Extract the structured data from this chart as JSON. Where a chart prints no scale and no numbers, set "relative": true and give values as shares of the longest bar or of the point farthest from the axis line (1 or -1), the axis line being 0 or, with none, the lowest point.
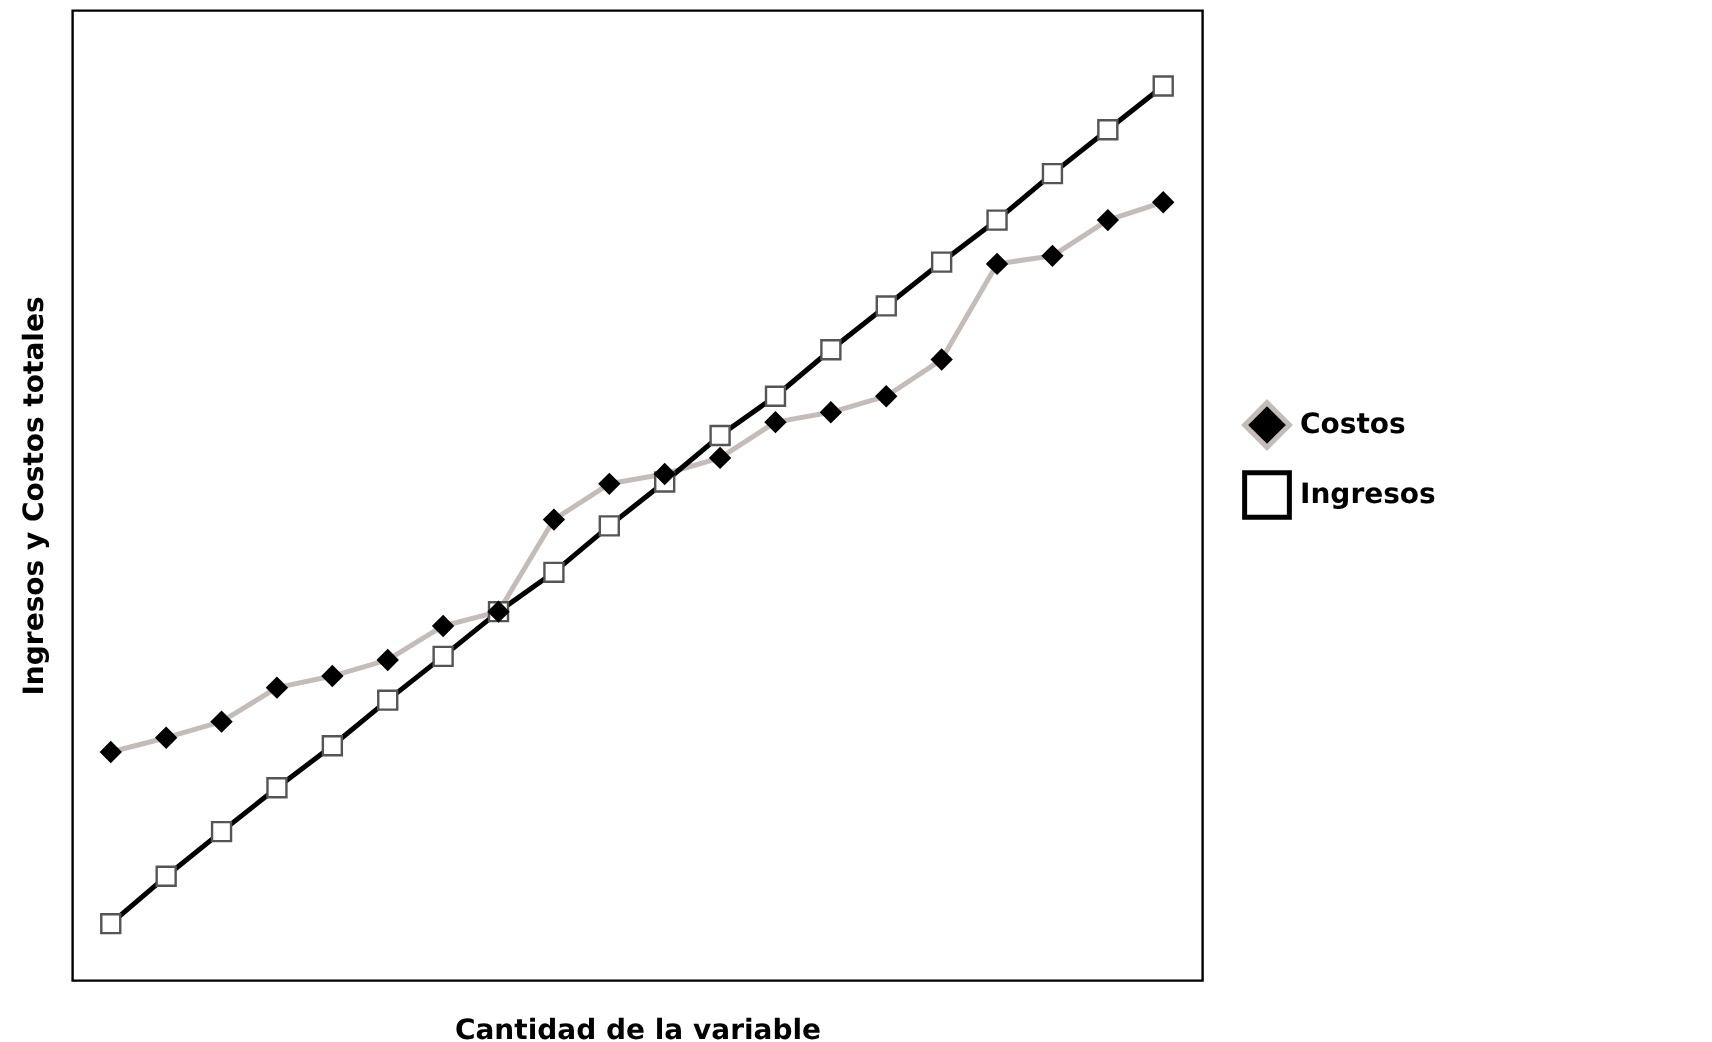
{
  "chart_data": {
    "type": "line",
    "relative": true,
    "xlabel": "Cantidad de la variable",
    "ylabel": "Ingresos y Costos totales",
    "categories": [
      null,
      null,
      null,
      null,
      null,
      null,
      null,
      null,
      null,
      null,
      null,
      null,
      null,
      null,
      null,
      null,
      null,
      null,
      null,
      null
    ],
    "grid": false,
    "legend": "right",
    "line_style": "solid",
    "series": [
      {
        "name": "Costos",
        "color": "#c4bcb8",
        "marker": "diamond",
        "values": [
          0.255,
          0.271,
          0.289,
          0.327,
          0.34,
          0.358,
          0.396,
          0.412,
          0.515,
          0.555,
          0.566,
          0.584,
          0.624,
          0.635,
          0.653,
          0.694,
          0.801,
          0.81,
          0.85,
          0.87
        ]
      },
      {
        "name": "Ingresos",
        "color": "#000000",
        "marker": "square",
        "values": [
          0.063,
          0.116,
          0.166,
          0.215,
          0.262,
          0.313,
          0.362,
          0.412,
          0.456,
          0.508,
          0.557,
          0.609,
          0.653,
          0.705,
          0.754,
          0.803,
          0.85,
          0.902,
          0.951,
          1
        ]
      }
    ]
  }
}
